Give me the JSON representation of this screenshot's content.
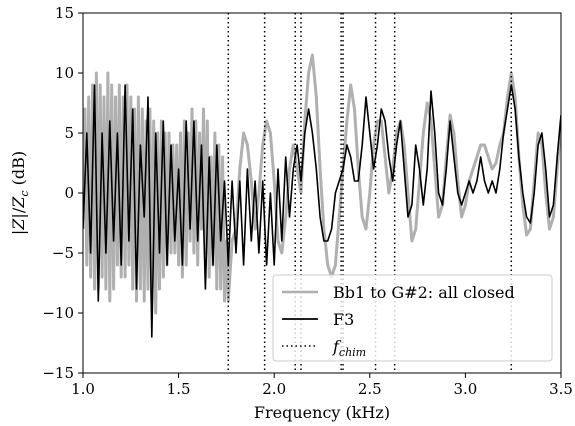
{
  "chart_data": {
    "type": "line",
    "xlabel": "Frequency (kHz)",
    "ylabel": "|Z|/Zc (dB)",
    "ylabel_parts": {
      "pre": "|",
      "Z": "Z",
      "mid": "|/",
      "Zc": "Z",
      "sub": "c",
      "post": " (dB)"
    },
    "xlim": [
      1.0,
      3.5
    ],
    "ylim": [
      -15,
      15
    ],
    "x_ticks": [
      1.0,
      1.5,
      2.0,
      2.5,
      3.0,
      3.5
    ],
    "x_tick_labels": [
      "1.0",
      "1.5",
      "2.0",
      "2.5",
      "3.0",
      "3.5"
    ],
    "y_ticks": [
      -15,
      -10,
      -5,
      0,
      5,
      10,
      15
    ],
    "y_tick_labels": [
      "−15",
      "−10",
      "−5",
      "0",
      "5",
      "10",
      "15"
    ],
    "grid": false,
    "legend_position": "lower-right",
    "f_chim_lines": [
      1.76,
      1.95,
      2.11,
      2.14,
      2.35,
      2.36,
      2.53,
      2.63,
      3.24
    ],
    "series": [
      {
        "name": "Bb1 to G#2: all closed",
        "color": "#b0b0b0",
        "style": "solid",
        "points": [
          [
            1.0,
            -3
          ],
          [
            1.01,
            7
          ],
          [
            1.02,
            -6
          ],
          [
            1.03,
            8
          ],
          [
            1.04,
            -7
          ],
          [
            1.05,
            9
          ],
          [
            1.06,
            -8
          ],
          [
            1.07,
            10
          ],
          [
            1.08,
            -8
          ],
          [
            1.09,
            9
          ],
          [
            1.1,
            -7
          ],
          [
            1.11,
            8
          ],
          [
            1.12,
            -8
          ],
          [
            1.13,
            10
          ],
          [
            1.14,
            -9
          ],
          [
            1.15,
            9
          ],
          [
            1.16,
            -8
          ],
          [
            1.17,
            8
          ],
          [
            1.18,
            -6
          ],
          [
            1.19,
            9
          ],
          [
            1.2,
            -7
          ],
          [
            1.21,
            8
          ],
          [
            1.22,
            -7
          ],
          [
            1.23,
            9
          ],
          [
            1.24,
            -6
          ],
          [
            1.25,
            8
          ],
          [
            1.26,
            -8
          ],
          [
            1.27,
            7
          ],
          [
            1.28,
            -9
          ],
          [
            1.29,
            8
          ],
          [
            1.3,
            -8
          ],
          [
            1.31,
            7
          ],
          [
            1.32,
            -9
          ],
          [
            1.33,
            6
          ],
          [
            1.34,
            -8
          ],
          [
            1.35,
            7
          ],
          [
            1.36,
            -9
          ],
          [
            1.37,
            6
          ],
          [
            1.38,
            -10
          ],
          [
            1.39,
            5
          ],
          [
            1.4,
            -8
          ],
          [
            1.41,
            6
          ],
          [
            1.42,
            -7
          ],
          [
            1.43,
            5
          ],
          [
            1.44,
            -6
          ],
          [
            1.45,
            5
          ],
          [
            1.46,
            -5
          ],
          [
            1.47,
            4
          ],
          [
            1.48,
            -5
          ],
          [
            1.49,
            4
          ],
          [
            1.5,
            -6
          ],
          [
            1.51,
            5
          ],
          [
            1.52,
            -7
          ],
          [
            1.53,
            6
          ],
          [
            1.54,
            -6
          ],
          [
            1.55,
            5
          ],
          [
            1.56,
            -4
          ],
          [
            1.57,
            7
          ],
          [
            1.58,
            -5
          ],
          [
            1.59,
            6
          ],
          [
            1.6,
            -6
          ],
          [
            1.61,
            5
          ],
          [
            1.62,
            -3
          ],
          [
            1.63,
            7
          ],
          [
            1.64,
            -5
          ],
          [
            1.65,
            6
          ],
          [
            1.66,
            -7
          ],
          [
            1.67,
            3
          ],
          [
            1.68,
            -6
          ],
          [
            1.69,
            5
          ],
          [
            1.7,
            -8
          ],
          [
            1.71,
            4
          ],
          [
            1.72,
            -8
          ],
          [
            1.73,
            3
          ],
          [
            1.74,
            -9
          ],
          [
            1.75,
            -4
          ],
          [
            1.76,
            -9
          ],
          [
            1.78,
            -4
          ],
          [
            1.8,
            -3
          ],
          [
            1.82,
            2
          ],
          [
            1.84,
            5
          ],
          [
            1.86,
            4
          ],
          [
            1.88,
            1
          ],
          [
            1.9,
            -3
          ],
          [
            1.92,
            0
          ],
          [
            1.94,
            4
          ],
          [
            1.96,
            6
          ],
          [
            1.98,
            5
          ],
          [
            2.0,
            1
          ],
          [
            2.02,
            -4
          ],
          [
            2.04,
            -5
          ],
          [
            2.06,
            -2
          ],
          [
            2.08,
            2
          ],
          [
            2.1,
            4
          ],
          [
            2.12,
            2
          ],
          [
            2.14,
            0
          ],
          [
            2.16,
            6
          ],
          [
            2.18,
            10
          ],
          [
            2.2,
            11.5
          ],
          [
            2.22,
            8
          ],
          [
            2.24,
            2
          ],
          [
            2.26,
            -3
          ],
          [
            2.28,
            -6
          ],
          [
            2.3,
            -7
          ],
          [
            2.32,
            -6
          ],
          [
            2.34,
            -2
          ],
          [
            2.36,
            2
          ],
          [
            2.38,
            6
          ],
          [
            2.4,
            9
          ],
          [
            2.42,
            7
          ],
          [
            2.44,
            2
          ],
          [
            2.46,
            -2
          ],
          [
            2.48,
            -3
          ],
          [
            2.5,
            0
          ],
          [
            2.52,
            4
          ],
          [
            2.54,
            6
          ],
          [
            2.56,
            6
          ],
          [
            2.58,
            3
          ],
          [
            2.6,
            0
          ],
          [
            2.62,
            2
          ],
          [
            2.64,
            5
          ],
          [
            2.66,
            6
          ],
          [
            2.68,
            4
          ],
          [
            2.7,
            0
          ],
          [
            2.72,
            -4
          ],
          [
            2.74,
            -3
          ],
          [
            2.76,
            1
          ],
          [
            2.78,
            5
          ],
          [
            2.8,
            7.5
          ],
          [
            2.82,
            6
          ],
          [
            2.84,
            2
          ],
          [
            2.86,
            -2
          ],
          [
            2.88,
            -1
          ],
          [
            2.9,
            3
          ],
          [
            2.92,
            6.5
          ],
          [
            2.94,
            5
          ],
          [
            2.96,
            1
          ],
          [
            2.98,
            -2
          ],
          [
            3.0,
            -1
          ],
          [
            3.02,
            1
          ],
          [
            3.04,
            2
          ],
          [
            3.06,
            3
          ],
          [
            3.08,
            4
          ],
          [
            3.1,
            4
          ],
          [
            3.12,
            3
          ],
          [
            3.14,
            2
          ],
          [
            3.16,
            2.5
          ],
          [
            3.18,
            4
          ],
          [
            3.2,
            5
          ],
          [
            3.22,
            8
          ],
          [
            3.24,
            10
          ],
          [
            3.26,
            8
          ],
          [
            3.28,
            3
          ],
          [
            3.3,
            -1
          ],
          [
            3.32,
            -3.5
          ],
          [
            3.34,
            -3
          ],
          [
            3.36,
            1
          ],
          [
            3.38,
            5
          ],
          [
            3.4,
            4
          ],
          [
            3.42,
            0
          ],
          [
            3.44,
            -3
          ],
          [
            3.46,
            -2
          ],
          [
            3.48,
            2
          ],
          [
            3.5,
            6
          ]
        ]
      },
      {
        "name": "F3",
        "color": "#000000",
        "style": "solid",
        "points": [
          [
            1.0,
            -3
          ],
          [
            1.02,
            5
          ],
          [
            1.04,
            -5
          ],
          [
            1.06,
            9
          ],
          [
            1.08,
            -9
          ],
          [
            1.1,
            5
          ],
          [
            1.12,
            -5
          ],
          [
            1.14,
            6
          ],
          [
            1.16,
            -4
          ],
          [
            1.18,
            5
          ],
          [
            1.2,
            -6
          ],
          [
            1.22,
            9
          ],
          [
            1.24,
            -4
          ],
          [
            1.26,
            7
          ],
          [
            1.28,
            -8
          ],
          [
            1.3,
            4
          ],
          [
            1.32,
            -2
          ],
          [
            1.34,
            8
          ],
          [
            1.36,
            -12
          ],
          [
            1.38,
            5
          ],
          [
            1.4,
            -5
          ],
          [
            1.42,
            6
          ],
          [
            1.44,
            -6
          ],
          [
            1.46,
            4
          ],
          [
            1.48,
            -4
          ],
          [
            1.5,
            2
          ],
          [
            1.52,
            -6
          ],
          [
            1.54,
            6
          ],
          [
            1.56,
            -3
          ],
          [
            1.58,
            6
          ],
          [
            1.6,
            -4
          ],
          [
            1.62,
            4
          ],
          [
            1.64,
            -8
          ],
          [
            1.66,
            3
          ],
          [
            1.68,
            -6
          ],
          [
            1.7,
            4
          ],
          [
            1.72,
            -4
          ],
          [
            1.74,
            1
          ],
          [
            1.76,
            -6
          ],
          [
            1.78,
            1
          ],
          [
            1.8,
            -5
          ],
          [
            1.82,
            1
          ],
          [
            1.84,
            -6
          ],
          [
            1.86,
            2
          ],
          [
            1.88,
            -4
          ],
          [
            1.9,
            1
          ],
          [
            1.92,
            -5
          ],
          [
            1.94,
            1
          ],
          [
            1.96,
            -6
          ],
          [
            1.98,
            0
          ],
          [
            2.0,
            -6
          ],
          [
            2.02,
            2
          ],
          [
            2.04,
            -4
          ],
          [
            2.06,
            3
          ],
          [
            2.08,
            -2
          ],
          [
            2.1,
            2
          ],
          [
            2.12,
            4
          ],
          [
            2.14,
            1
          ],
          [
            2.16,
            5
          ],
          [
            2.18,
            7
          ],
          [
            2.2,
            5
          ],
          [
            2.22,
            2
          ],
          [
            2.24,
            -2
          ],
          [
            2.26,
            -4
          ],
          [
            2.28,
            -4
          ],
          [
            2.3,
            -3
          ],
          [
            2.32,
            0
          ],
          [
            2.34,
            1
          ],
          [
            2.36,
            2
          ],
          [
            2.38,
            4
          ],
          [
            2.4,
            3
          ],
          [
            2.42,
            1
          ],
          [
            2.44,
            1
          ],
          [
            2.46,
            4
          ],
          [
            2.48,
            8
          ],
          [
            2.5,
            5
          ],
          [
            2.52,
            2
          ],
          [
            2.54,
            4
          ],
          [
            2.56,
            7
          ],
          [
            2.58,
            6
          ],
          [
            2.6,
            3
          ],
          [
            2.62,
            1
          ],
          [
            2.64,
            4
          ],
          [
            2.66,
            6
          ],
          [
            2.68,
            2
          ],
          [
            2.7,
            -2
          ],
          [
            2.72,
            -1
          ],
          [
            2.74,
            4
          ],
          [
            2.76,
            2
          ],
          [
            2.78,
            -1
          ],
          [
            2.8,
            2
          ],
          [
            2.82,
            8.5
          ],
          [
            2.84,
            5
          ],
          [
            2.86,
            0
          ],
          [
            2.88,
            -1
          ],
          [
            2.9,
            2
          ],
          [
            2.92,
            6
          ],
          [
            2.94,
            3
          ],
          [
            2.96,
            0
          ],
          [
            2.98,
            -1
          ],
          [
            3.0,
            0
          ],
          [
            3.02,
            1
          ],
          [
            3.04,
            0
          ],
          [
            3.06,
            1
          ],
          [
            3.08,
            3
          ],
          [
            3.1,
            1
          ],
          [
            3.12,
            0
          ],
          [
            3.14,
            1
          ],
          [
            3.16,
            0
          ],
          [
            3.18,
            2
          ],
          [
            3.2,
            5
          ],
          [
            3.22,
            7
          ],
          [
            3.24,
            9
          ],
          [
            3.26,
            7
          ],
          [
            3.28,
            3
          ],
          [
            3.3,
            0
          ],
          [
            3.32,
            -2
          ],
          [
            3.34,
            -2.5
          ],
          [
            3.36,
            0
          ],
          [
            3.38,
            4
          ],
          [
            3.4,
            5
          ],
          [
            3.42,
            2
          ],
          [
            3.44,
            -2
          ],
          [
            3.46,
            -1
          ],
          [
            3.48,
            3
          ],
          [
            3.5,
            6.5
          ]
        ]
      }
    ],
    "legend": [
      {
        "label": "Bb1 to G#2: all closed",
        "color": "#b0b0b0",
        "style": "solid"
      },
      {
        "label": "F3",
        "color": "#000000",
        "style": "solid"
      },
      {
        "label": "f",
        "subscript": "chim",
        "color": "#000000",
        "style": "dotted"
      }
    ]
  }
}
